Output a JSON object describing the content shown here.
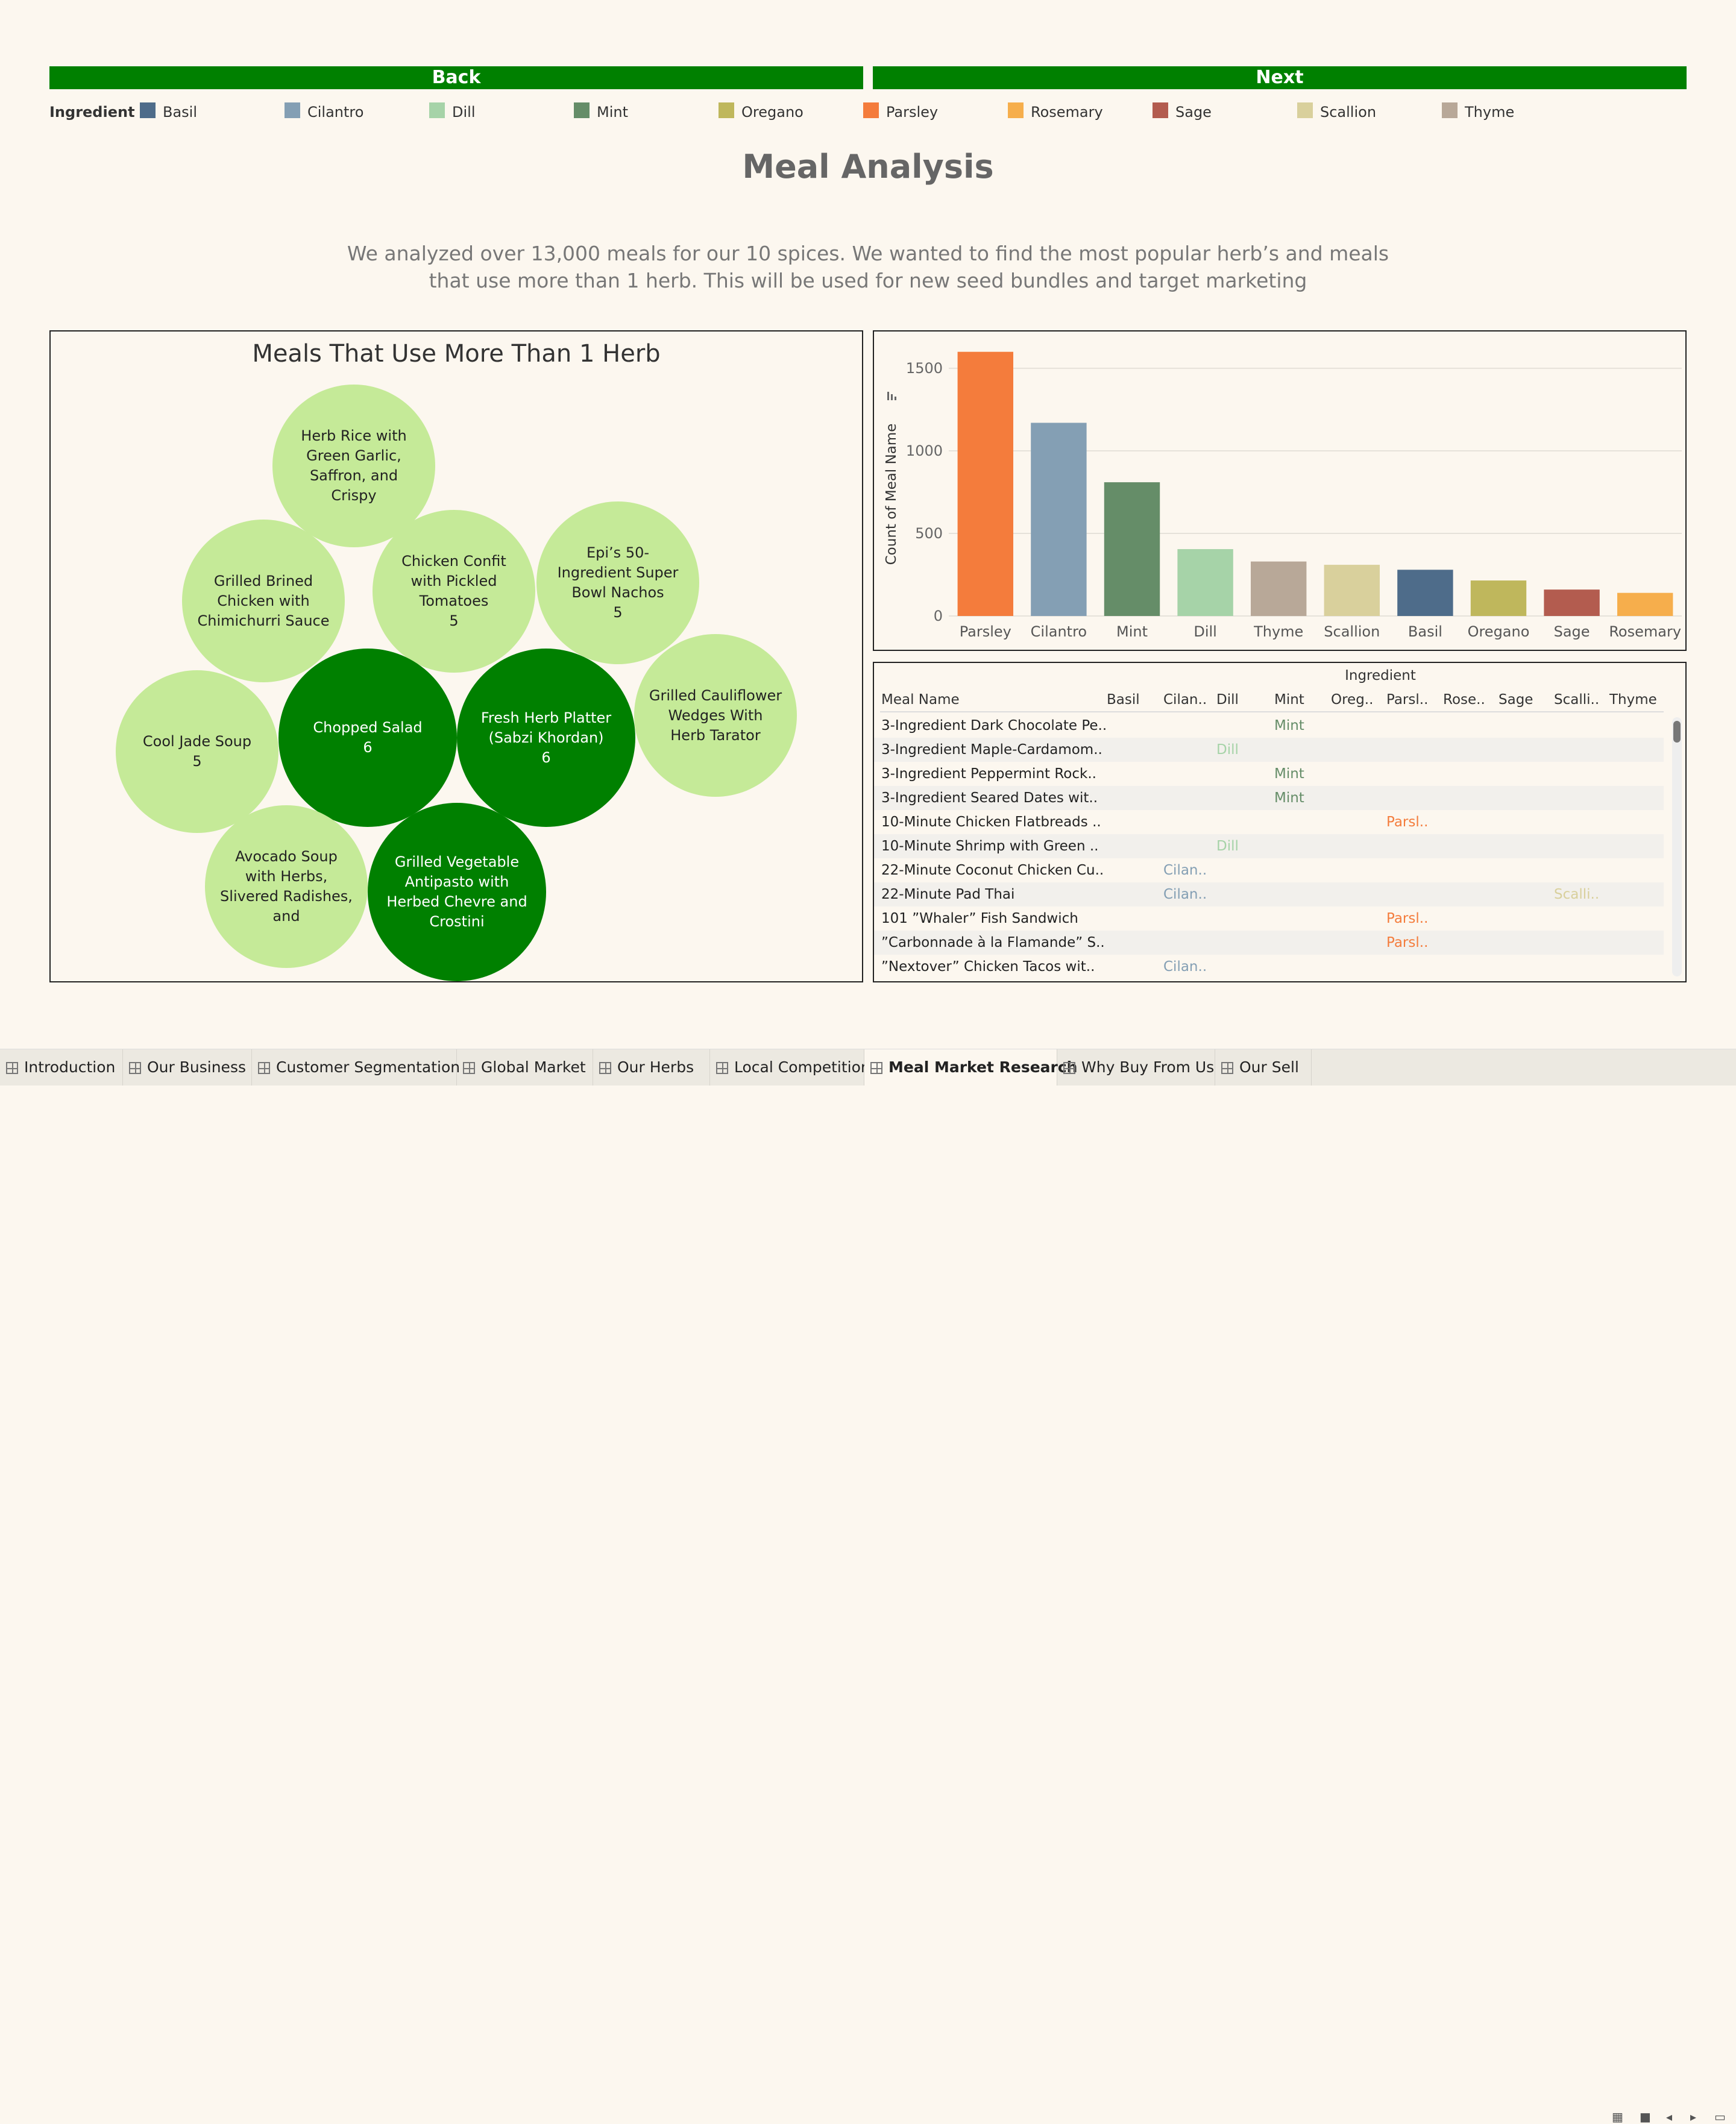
{
  "nav": {
    "back_label": "Back",
    "next_label": "Next"
  },
  "legend": {
    "title": "Ingredient",
    "items": [
      {
        "label": "Basil",
        "color": "#4e6c8a"
      },
      {
        "label": "Cilantro",
        "color": "#849fb4"
      },
      {
        "label": "Dill",
        "color": "#a6d3a8"
      },
      {
        "label": "Mint",
        "color": "#658d68"
      },
      {
        "label": "Oregano",
        "color": "#bfb75c"
      },
      {
        "label": "Parsley",
        "color": "#f47c3c"
      },
      {
        "label": "Rosemary",
        "color": "#f6ae4c"
      },
      {
        "label": "Sage",
        "color": "#b35c4f"
      },
      {
        "label": "Scallion",
        "color": "#d9d09c"
      },
      {
        "label": "Thyme",
        "color": "#b8a898"
      }
    ]
  },
  "page": {
    "title": "Meal Analysis",
    "description": "We analyzed over 13,000 meals for our 10 spices. We wanted to find the most popular herb’s and meals that use more than 1 herb. This will be used for new seed bundles and target marketing"
  },
  "bubbles": {
    "title": "Meals That Use More Than 1 Herb",
    "items": [
      {
        "label": "Herb Rice with Green Garlic, Saffron, and Crispy",
        "value": "",
        "tone": "light"
      },
      {
        "label": "Grilled Brined Chicken with Chimichurri Sauce",
        "value": "",
        "tone": "light"
      },
      {
        "label": "Chicken Confit with Pickled Tomatoes",
        "value": "5",
        "tone": "light"
      },
      {
        "label": "Epi’s 50-Ingredient Super Bowl Nachos",
        "value": "5",
        "tone": "light"
      },
      {
        "label": "Grilled Cauliflower Wedges With Herb Tarator",
        "value": "",
        "tone": "light"
      },
      {
        "label": "Cool Jade Soup",
        "value": "5",
        "tone": "light"
      },
      {
        "label": "Chopped Salad",
        "value": "6",
        "tone": "dark"
      },
      {
        "label": "Fresh Herb Platter (Sabzi Khordan)",
        "value": "6",
        "tone": "dark"
      },
      {
        "label": "Avocado Soup with Herbs, Slivered Radishes, and",
        "value": "",
        "tone": "light"
      },
      {
        "label": "Grilled Vegetable Antipasto with Herbed Chevre and Crostini",
        "value": "",
        "tone": "dark"
      }
    ]
  },
  "chart_data": {
    "type": "bar",
    "title": "",
    "xlabel": "",
    "ylabel": "Count of Meal Name",
    "ylim": [
      0,
      1650
    ],
    "yticks": [
      0,
      500,
      1000,
      1500
    ],
    "grid": true,
    "categories": [
      "Parsley",
      "Cilantro",
      "Mint",
      "Dill",
      "Thyme",
      "Scallion",
      "Basil",
      "Oregano",
      "Sage",
      "Rosemary"
    ],
    "values": [
      1600,
      1170,
      810,
      405,
      330,
      310,
      280,
      215,
      160,
      140
    ],
    "colors": [
      "#f47c3c",
      "#849fb4",
      "#658d68",
      "#a6d3a8",
      "#b8a898",
      "#d9d09c",
      "#4e6c8a",
      "#bfb75c",
      "#b35c4f",
      "#f6ae4c"
    ]
  },
  "table": {
    "group_header": "Ingredient",
    "columns": [
      "Meal Name",
      "Basil",
      "Cilan..",
      "Dill",
      "Mint",
      "Oreg..",
      "Parsl..",
      "Rose..",
      "Sage",
      "Scalli..",
      "Thyme"
    ],
    "rows": [
      {
        "name": "3-Ingredient Dark Chocolate Pe..",
        "cells": [
          "",
          "",
          "",
          "Mint",
          "",
          "",
          "",
          "",
          "",
          ""
        ]
      },
      {
        "name": "3-Ingredient Maple-Cardamom..",
        "cells": [
          "",
          "",
          "Dill",
          "",
          "",
          "",
          "",
          "",
          "",
          ""
        ]
      },
      {
        "name": "3-Ingredient Peppermint Rock..",
        "cells": [
          "",
          "",
          "",
          "Mint",
          "",
          "",
          "",
          "",
          "",
          ""
        ]
      },
      {
        "name": "3-Ingredient Seared Dates wit..",
        "cells": [
          "",
          "",
          "",
          "Mint",
          "",
          "",
          "",
          "",
          "",
          ""
        ]
      },
      {
        "name": "10-Minute Chicken Flatbreads ..",
        "cells": [
          "",
          "",
          "",
          "",
          "",
          "Parsl..",
          "",
          "",
          "",
          ""
        ]
      },
      {
        "name": "10-Minute Shrimp with Green ..",
        "cells": [
          "",
          "",
          "Dill",
          "",
          "",
          "",
          "",
          "",
          "",
          ""
        ]
      },
      {
        "name": "22-Minute Coconut Chicken Cu..",
        "cells": [
          "",
          "Cilan..",
          "",
          "",
          "",
          "",
          "",
          "",
          "",
          ""
        ]
      },
      {
        "name": "22-Minute Pad Thai",
        "cells": [
          "",
          "Cilan..",
          "",
          "",
          "",
          "",
          "",
          "",
          "Scalli..",
          ""
        ]
      },
      {
        "name": "101 ”Whaler” Fish Sandwich",
        "cells": [
          "",
          "",
          "",
          "",
          "",
          "Parsl..",
          "",
          "",
          "",
          ""
        ]
      },
      {
        "name": "”Carbonnade à la Flamande” S..",
        "cells": [
          "",
          "",
          "",
          "",
          "",
          "Parsl..",
          "",
          "",
          "",
          ""
        ]
      },
      {
        "name": "”Nextover” Chicken Tacos wit..",
        "cells": [
          "",
          "Cilan..",
          "",
          "",
          "",
          "",
          "",
          "",
          "",
          ""
        ]
      }
    ]
  },
  "tabs": {
    "items": [
      "Introduction",
      "Our Business",
      "Customer Segmentation",
      "Global Market",
      "Our Herbs",
      "Local Competition",
      "Meal Market Research",
      "Why Buy From Us",
      "Our Sell"
    ],
    "active": "Meal Market Research"
  }
}
